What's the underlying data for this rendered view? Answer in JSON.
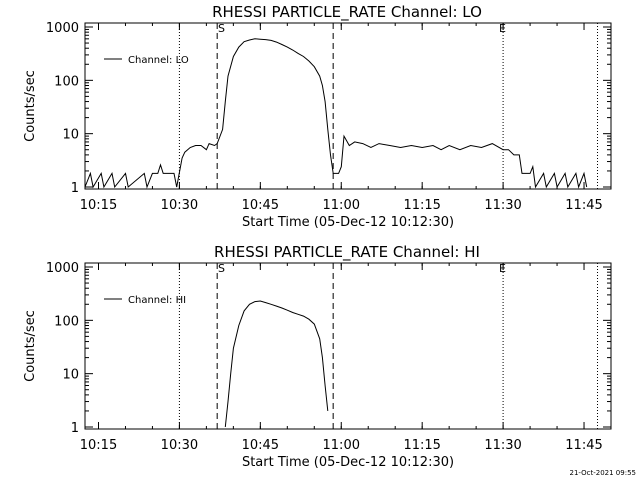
{
  "chart_data": [
    {
      "type": "line",
      "title": "RHESSI PARTICLE_RATE Channel: LO",
      "xlabel": "Start Time (05-Dec-12 10:12:30)",
      "ylabel": "Counts/sec",
      "x_range": [
        "10:12:30",
        "11:50:00"
      ],
      "ylim": [
        1,
        1000
      ],
      "y_scale": "log",
      "grid": false,
      "legend_position": "top-left",
      "x_ticks": [
        "10:15",
        "10:30",
        "10:45",
        "11:00",
        "11:15",
        "11:30",
        "11:45"
      ],
      "y_ticks": [
        "1",
        "10",
        "100",
        "1000"
      ],
      "markers": [
        {
          "label": "S",
          "time": "10:37:00",
          "style": "dashed"
        },
        {
          "label": "",
          "time": "10:58:30",
          "style": "dashed"
        },
        {
          "label": "E",
          "time": "11:30:00",
          "style": "dotted"
        }
      ],
      "reference_lines": [
        {
          "time": "10:30:00",
          "style": "dotted"
        },
        {
          "time": "11:47:30",
          "style": "dotted"
        }
      ],
      "series": [
        {
          "name": "Channel: LO",
          "points": [
            [
              "10:12:30",
              1
            ],
            [
              "10:13:30",
              1.8
            ],
            [
              "10:14:00",
              1
            ],
            [
              "10:15:30",
              1.8
            ],
            [
              "10:16:00",
              1
            ],
            [
              "10:17:30",
              1.8
            ],
            [
              "10:18:00",
              1
            ],
            [
              "10:20:00",
              1.8
            ],
            [
              "10:20:30",
              1
            ],
            [
              "10:23:30",
              1.8
            ],
            [
              "10:24:00",
              1
            ],
            [
              "10:25:00",
              1.8
            ],
            [
              "10:26:00",
              1.8
            ],
            [
              "10:26:30",
              2.6
            ],
            [
              "10:27:00",
              1.8
            ],
            [
              "10:29:00",
              1.8
            ],
            [
              "10:29:30",
              1
            ],
            [
              "10:30:30",
              3.5
            ],
            [
              "10:31:00",
              4.5
            ],
            [
              "10:32:00",
              5.5
            ],
            [
              "10:33:00",
              6
            ],
            [
              "10:34:00",
              6
            ],
            [
              "10:35:00",
              5
            ],
            [
              "10:35:30",
              6.5
            ],
            [
              "10:36:30",
              6
            ],
            [
              "10:37:00",
              6.5
            ],
            [
              "10:38:00",
              12
            ],
            [
              "10:38:30",
              40
            ],
            [
              "10:39:00",
              120
            ],
            [
              "10:40:00",
              280
            ],
            [
              "10:41:00",
              420
            ],
            [
              "10:42:00",
              530
            ],
            [
              "10:43:00",
              570
            ],
            [
              "10:44:00",
              600
            ],
            [
              "10:45:00",
              590
            ],
            [
              "10:46:00",
              580
            ],
            [
              "10:47:00",
              560
            ],
            [
              "10:48:00",
              520
            ],
            [
              "10:49:00",
              470
            ],
            [
              "10:50:00",
              420
            ],
            [
              "10:51:00",
              370
            ],
            [
              "10:52:00",
              320
            ],
            [
              "10:53:00",
              280
            ],
            [
              "10:54:00",
              230
            ],
            [
              "10:55:00",
              180
            ],
            [
              "10:56:00",
              120
            ],
            [
              "10:56:30",
              80
            ],
            [
              "10:57:00",
              40
            ],
            [
              "10:57:30",
              12
            ],
            [
              "10:58:00",
              4
            ],
            [
              "10:58:30",
              1.8
            ],
            [
              "10:59:30",
              1.8
            ],
            [
              "11:00:00",
              2.4
            ],
            [
              "11:00:30",
              9
            ],
            [
              "11:01:30",
              6
            ],
            [
              "11:02:30",
              7
            ],
            [
              "11:04:00",
              6.5
            ],
            [
              "11:05:30",
              5.5
            ],
            [
              "11:07:00",
              6.5
            ],
            [
              "11:09:00",
              6
            ],
            [
              "11:11:00",
              5.5
            ],
            [
              "11:13:00",
              6
            ],
            [
              "11:15:00",
              5.5
            ],
            [
              "11:17:00",
              6
            ],
            [
              "11:18:30",
              5
            ],
            [
              "11:20:00",
              6
            ],
            [
              "11:22:00",
              5
            ],
            [
              "11:24:00",
              6
            ],
            [
              "11:26:00",
              5.5
            ],
            [
              "11:28:00",
              6.5
            ],
            [
              "11:30:00",
              5
            ],
            [
              "11:31:00",
              5
            ],
            [
              "11:32:00",
              4
            ],
            [
              "11:33:00",
              4
            ],
            [
              "11:33:30",
              1.8
            ],
            [
              "11:35:00",
              1.8
            ],
            [
              "11:35:30",
              2.4
            ],
            [
              "11:36:00",
              1
            ],
            [
              "11:37:30",
              1.8
            ],
            [
              "11:38:00",
              1
            ],
            [
              "11:39:30",
              1.8
            ],
            [
              "11:40:00",
              1
            ],
            [
              "11:41:30",
              1.8
            ],
            [
              "11:42:00",
              1
            ],
            [
              "11:43:30",
              1.8
            ],
            [
              "11:44:00",
              1
            ],
            [
              "11:45:00",
              1.8
            ],
            [
              "11:45:30",
              1
            ]
          ]
        }
      ]
    },
    {
      "type": "line",
      "title": "RHESSI PARTICLE_RATE Channel: HI",
      "xlabel": "Start Time (05-Dec-12 10:12:30)",
      "ylabel": "Counts/sec",
      "x_range": [
        "10:12:30",
        "11:50:00"
      ],
      "ylim": [
        1,
        1000
      ],
      "y_scale": "log",
      "grid": false,
      "legend_position": "top-left",
      "x_ticks": [
        "10:15",
        "10:30",
        "10:45",
        "11:00",
        "11:15",
        "11:30",
        "11:45"
      ],
      "y_ticks": [
        "1",
        "10",
        "100",
        "1000"
      ],
      "markers": [
        {
          "label": "S",
          "time": "10:37:00",
          "style": "dashed"
        },
        {
          "label": "",
          "time": "10:58:30",
          "style": "dashed"
        },
        {
          "label": "E",
          "time": "11:30:00",
          "style": "dotted"
        }
      ],
      "reference_lines": [
        {
          "time": "10:30:00",
          "style": "dotted"
        },
        {
          "time": "11:47:30",
          "style": "dotted"
        }
      ],
      "series": [
        {
          "name": "Channel: HI",
          "points": [
            [
              "10:38:30",
              1
            ],
            [
              "10:39:00",
              3
            ],
            [
              "10:39:30",
              10
            ],
            [
              "10:40:00",
              30
            ],
            [
              "10:41:00",
              80
            ],
            [
              "10:42:00",
              150
            ],
            [
              "10:43:00",
              200
            ],
            [
              "10:44:00",
              225
            ],
            [
              "10:45:00",
              230
            ],
            [
              "10:46:00",
              215
            ],
            [
              "10:47:00",
              200
            ],
            [
              "10:48:00",
              185
            ],
            [
              "10:49:00",
              170
            ],
            [
              "10:50:00",
              155
            ],
            [
              "10:51:00",
              140
            ],
            [
              "10:52:00",
              130
            ],
            [
              "10:53:00",
              120
            ],
            [
              "10:54:00",
              105
            ],
            [
              "10:55:00",
              85
            ],
            [
              "10:56:00",
              45
            ],
            [
              "10:56:30",
              20
            ],
            [
              "10:57:00",
              6
            ],
            [
              "10:57:30",
              2
            ]
          ]
        }
      ]
    }
  ],
  "footer": {
    "timestamp": "21-Oct-2021 09:55"
  }
}
